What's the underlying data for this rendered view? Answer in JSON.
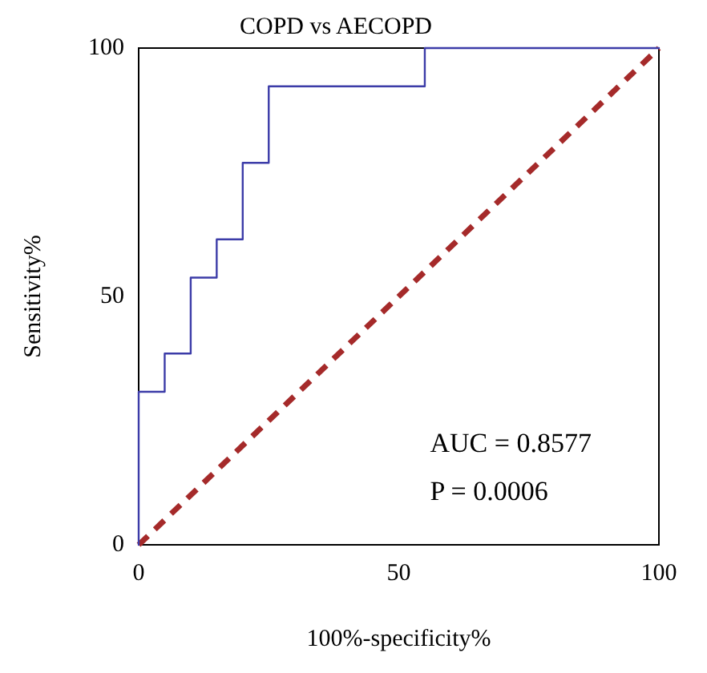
{
  "chart_data": {
    "type": "line",
    "title": "COPD vs AECOPD",
    "xlabel": "100%-specificity%",
    "ylabel": "Sensitivity%",
    "series": [
      {
        "type": "line",
        "color": "#3c3ca8",
        "line_style": "solid",
        "x": [
          0,
          0,
          5,
          5,
          10,
          10,
          15,
          15,
          20,
          20,
          25,
          25,
          55,
          55,
          100
        ],
        "values": [
          0,
          30.8,
          30.8,
          38.5,
          38.5,
          53.8,
          53.8,
          61.5,
          61.5,
          76.9,
          76.9,
          92.3,
          92.3,
          100,
          100
        ]
      },
      {
        "type": "line",
        "color": "#a52a2a",
        "line_style": "dashed",
        "x": [
          0,
          100
        ],
        "values": [
          0,
          100
        ]
      }
    ],
    "xlim": [
      0,
      100
    ],
    "xticks": [
      0,
      50,
      100
    ],
    "ylim": [
      0,
      100
    ],
    "yticks": [
      0,
      50,
      100
    ],
    "grid": false,
    "legend": false,
    "marker": "none",
    "annotations": [
      "AUC = 0.8577",
      "P = 0.0006"
    ]
  }
}
